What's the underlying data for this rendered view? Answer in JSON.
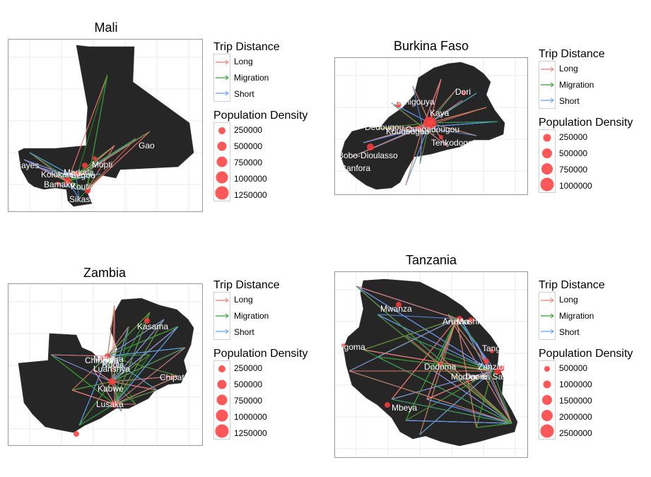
{
  "panels": [
    {
      "id": "mali",
      "title": "Mali",
      "cities": [
        "Kayes",
        "Kolokani",
        "Markala",
        "Segou",
        "Bamako",
        "Koutiala",
        "Sikasso",
        "Mopti",
        "Gao"
      ],
      "density_values": [
        "250000",
        "500000",
        "750000",
        "1000000",
        "1250000"
      ]
    },
    {
      "id": "burkina",
      "title": "Burkina Faso",
      "cities": [
        "Ouahigouya",
        "Dori",
        "Kaya",
        "Dédougou",
        "Koudougou",
        "Ouagadougou",
        "Tenkodogo",
        "Bobo-Dioulasso",
        "Banfora"
      ],
      "density_values": [
        "250000",
        "500000",
        "750000",
        "1000000"
      ]
    },
    {
      "id": "zambia",
      "title": "Zambia",
      "cities": [
        "Kasama",
        "Chingola",
        "Mufulira",
        "Ndola",
        "Luanshya",
        "Chipata",
        "Kabwe",
        "Lusaka"
      ],
      "density_values": [
        "250000",
        "500000",
        "750000",
        "1000000",
        "1250000"
      ]
    },
    {
      "id": "tanzania",
      "title": "Tanzania",
      "cities": [
        "Mwanza",
        "Arusha",
        "Moshi",
        "Tanga",
        "Kigoma",
        "Dodoma",
        "Zanzibar",
        "Morogoro",
        "Dar es Salaam",
        "Mbeya"
      ],
      "density_values": [
        "500000",
        "1000000",
        "1500000",
        "2000000",
        "2500000"
      ]
    }
  ],
  "legend": {
    "trip_title": "Trip Distance",
    "trip_items": [
      {
        "label": "Long",
        "color": "#f8766d"
      },
      {
        "label": "Migration",
        "color": "#2ca02c"
      },
      {
        "label": "Short",
        "color": "#619cff"
      }
    ],
    "density_title": "Population Density"
  },
  "colors": {
    "land": "#262626",
    "border": "#444444",
    "city_dot": "#ff3b3b",
    "grid": "#ebebeb"
  }
}
